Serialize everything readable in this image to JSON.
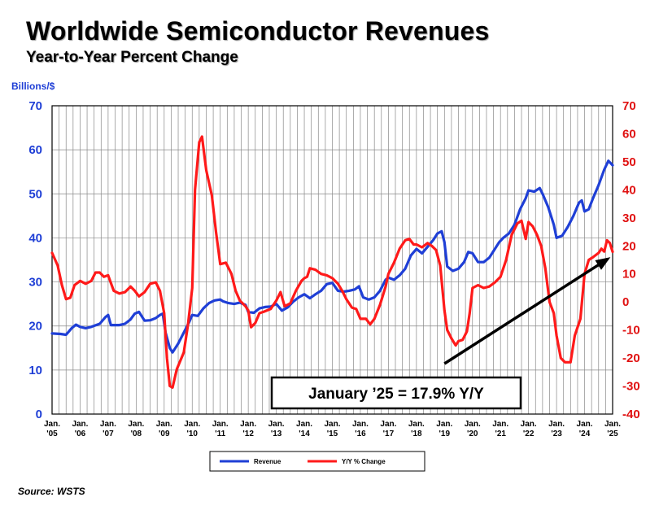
{
  "chart_data": {
    "type": "line",
    "title": "Worldwide Semiconductor Revenues",
    "subtitle": "Year-to-Year Percent Change",
    "left_axis": {
      "label": "Billions/$",
      "ylim": [
        0,
        70
      ],
      "ticks": [
        "0",
        "10",
        "20",
        "30",
        "40",
        "50",
        "60",
        "70"
      ],
      "color": "#1f3fd6"
    },
    "right_axis": {
      "label": "",
      "ylim": [
        -40,
        70
      ],
      "ticks": [
        "-40",
        "-30",
        "-20",
        "-10",
        "0",
        "10",
        "20",
        "30",
        "40",
        "50",
        "60",
        "70"
      ],
      "color": "#e01010"
    },
    "x_ticks": [
      {
        "top": "Jan.",
        "bottom": "'05",
        "x": 2005
      },
      {
        "top": "Jan.",
        "bottom": "'06",
        "x": 2006
      },
      {
        "top": "Jan.",
        "bottom": "'07",
        "x": 2007
      },
      {
        "top": "Jan.",
        "bottom": "'08",
        "x": 2008
      },
      {
        "top": "Jan.",
        "bottom": "'09",
        "x": 2009
      },
      {
        "top": "Jan.",
        "bottom": "'10",
        "x": 2010
      },
      {
        "top": "Jan.",
        "bottom": "'11",
        "x": 2011
      },
      {
        "top": "Jan.",
        "bottom": "'12",
        "x": 2012
      },
      {
        "top": "Jan.",
        "bottom": "'13",
        "x": 2013
      },
      {
        "top": "Jan.",
        "bottom": "'14",
        "x": 2014
      },
      {
        "top": "Jan.",
        "bottom": "'15",
        "x": 2015
      },
      {
        "top": "Jan.",
        "bottom": "'16",
        "x": 2016
      },
      {
        "top": "Jan.",
        "bottom": "'17",
        "x": 2017
      },
      {
        "top": "Jan.",
        "bottom": "'18",
        "x": 2018
      },
      {
        "top": "Jan.",
        "bottom": "'19",
        "x": 2019
      },
      {
        "top": "Jan.",
        "bottom": "'20",
        "x": 2020
      },
      {
        "top": "Jan.",
        "bottom": "'21",
        "x": 2021
      },
      {
        "top": "Jan.",
        "bottom": "'22",
        "x": 2022
      },
      {
        "top": "Jan.",
        "bottom": "'23",
        "x": 2023
      },
      {
        "top": "Jan.",
        "bottom": "'24",
        "x": 2024
      },
      {
        "top": "Jan.",
        "bottom": "'25",
        "x": 2025
      }
    ],
    "xlim": [
      2005,
      2025
    ],
    "grid": true,
    "series": [
      {
        "name": "Revenue",
        "axis": "left",
        "color": "#1f3fd6",
        "points": [
          [
            2005.0,
            18.3
          ],
          [
            2005.3,
            18.2
          ],
          [
            2005.5,
            18.0
          ],
          [
            2005.7,
            19.5
          ],
          [
            2005.85,
            20.3
          ],
          [
            2006.0,
            19.8
          ],
          [
            2006.2,
            19.5
          ],
          [
            2006.4,
            19.8
          ],
          [
            2006.7,
            20.5
          ],
          [
            2006.9,
            22.0
          ],
          [
            2007.0,
            22.5
          ],
          [
            2007.1,
            20.2
          ],
          [
            2007.4,
            20.2
          ],
          [
            2007.6,
            20.5
          ],
          [
            2007.8,
            21.5
          ],
          [
            2007.95,
            22.8
          ],
          [
            2008.1,
            23.2
          ],
          [
            2008.3,
            21.2
          ],
          [
            2008.5,
            21.3
          ],
          [
            2008.7,
            21.8
          ],
          [
            2008.85,
            22.5
          ],
          [
            2008.95,
            22.8
          ],
          [
            2009.05,
            18.5
          ],
          [
            2009.2,
            15.0
          ],
          [
            2009.3,
            14.0
          ],
          [
            2009.5,
            16.0
          ],
          [
            2009.7,
            18.5
          ],
          [
            2009.9,
            21.0
          ],
          [
            2010.0,
            22.5
          ],
          [
            2010.2,
            22.3
          ],
          [
            2010.4,
            24.0
          ],
          [
            2010.6,
            25.2
          ],
          [
            2010.8,
            25.8
          ],
          [
            2011.0,
            26.0
          ],
          [
            2011.1,
            25.6
          ],
          [
            2011.3,
            25.2
          ],
          [
            2011.5,
            25.0
          ],
          [
            2011.7,
            25.3
          ],
          [
            2011.9,
            24.8
          ],
          [
            2012.0,
            23.2
          ],
          [
            2012.2,
            23.0
          ],
          [
            2012.4,
            24.0
          ],
          [
            2012.6,
            24.3
          ],
          [
            2012.8,
            24.4
          ],
          [
            2013.0,
            25.0
          ],
          [
            2013.2,
            23.5
          ],
          [
            2013.4,
            24.2
          ],
          [
            2013.6,
            25.5
          ],
          [
            2013.8,
            26.5
          ],
          [
            2014.0,
            27.2
          ],
          [
            2014.2,
            26.3
          ],
          [
            2014.4,
            27.2
          ],
          [
            2014.6,
            28.0
          ],
          [
            2014.8,
            29.5
          ],
          [
            2015.0,
            29.8
          ],
          [
            2015.2,
            28.0
          ],
          [
            2015.4,
            27.8
          ],
          [
            2015.6,
            28.0
          ],
          [
            2015.8,
            28.3
          ],
          [
            2015.95,
            29.0
          ],
          [
            2016.1,
            26.5
          ],
          [
            2016.3,
            26.0
          ],
          [
            2016.5,
            26.5
          ],
          [
            2016.7,
            28.0
          ],
          [
            2016.9,
            30.5
          ],
          [
            2017.0,
            31.0
          ],
          [
            2017.2,
            30.5
          ],
          [
            2017.4,
            31.5
          ],
          [
            2017.6,
            33.0
          ],
          [
            2017.8,
            36.0
          ],
          [
            2018.0,
            37.5
          ],
          [
            2018.2,
            36.5
          ],
          [
            2018.4,
            38.0
          ],
          [
            2018.6,
            39.5
          ],
          [
            2018.75,
            41.0
          ],
          [
            2018.9,
            41.5
          ],
          [
            2019.0,
            39.0
          ],
          [
            2019.1,
            33.5
          ],
          [
            2019.3,
            32.5
          ],
          [
            2019.5,
            33.0
          ],
          [
            2019.7,
            34.5
          ],
          [
            2019.85,
            36.8
          ],
          [
            2020.0,
            36.5
          ],
          [
            2020.2,
            34.5
          ],
          [
            2020.4,
            34.5
          ],
          [
            2020.6,
            35.5
          ],
          [
            2020.8,
            37.5
          ],
          [
            2020.95,
            39.0
          ],
          [
            2021.1,
            40.0
          ],
          [
            2021.3,
            41.0
          ],
          [
            2021.5,
            43.0
          ],
          [
            2021.7,
            46.5
          ],
          [
            2021.9,
            49.0
          ],
          [
            2022.0,
            50.8
          ],
          [
            2022.2,
            50.5
          ],
          [
            2022.4,
            51.3
          ],
          [
            2022.5,
            50.0
          ],
          [
            2022.7,
            47.0
          ],
          [
            2022.9,
            43.0
          ],
          [
            2023.0,
            40.0
          ],
          [
            2023.2,
            40.5
          ],
          [
            2023.4,
            42.5
          ],
          [
            2023.6,
            45.0
          ],
          [
            2023.8,
            48.0
          ],
          [
            2023.9,
            48.5
          ],
          [
            2024.0,
            46.0
          ],
          [
            2024.15,
            46.5
          ],
          [
            2024.3,
            49.0
          ],
          [
            2024.5,
            52.0
          ],
          [
            2024.7,
            55.5
          ],
          [
            2024.85,
            57.5
          ],
          [
            2025.0,
            56.5
          ]
        ]
      },
      {
        "name": "Y/Y % Change",
        "axis": "right",
        "color": "#ff1a1a",
        "points": [
          [
            2005.0,
            17.5
          ],
          [
            2005.2,
            13.0
          ],
          [
            2005.35,
            6.0
          ],
          [
            2005.5,
            1.0
          ],
          [
            2005.65,
            1.5
          ],
          [
            2005.8,
            6.0
          ],
          [
            2006.0,
            7.5
          ],
          [
            2006.2,
            6.5
          ],
          [
            2006.4,
            7.5
          ],
          [
            2006.55,
            10.5
          ],
          [
            2006.7,
            10.5
          ],
          [
            2006.85,
            9.0
          ],
          [
            2007.0,
            9.5
          ],
          [
            2007.2,
            4.0
          ],
          [
            2007.4,
            3.0
          ],
          [
            2007.6,
            3.5
          ],
          [
            2007.8,
            5.5
          ],
          [
            2007.95,
            4.0
          ],
          [
            2008.1,
            2.0
          ],
          [
            2008.3,
            3.5
          ],
          [
            2008.5,
            6.5
          ],
          [
            2008.7,
            7.0
          ],
          [
            2008.85,
            4.0
          ],
          [
            2009.0,
            -4.0
          ],
          [
            2009.1,
            -20.0
          ],
          [
            2009.2,
            -30.0
          ],
          [
            2009.3,
            -30.5
          ],
          [
            2009.45,
            -24.0
          ],
          [
            2009.7,
            -18.0
          ],
          [
            2009.85,
            -8.0
          ],
          [
            2010.0,
            5.0
          ],
          [
            2010.1,
            40.0
          ],
          [
            2010.25,
            57.0
          ],
          [
            2010.35,
            59.0
          ],
          [
            2010.5,
            47.0
          ],
          [
            2010.7,
            38.0
          ],
          [
            2010.85,
            25.0
          ],
          [
            2011.0,
            13.5
          ],
          [
            2011.2,
            14.0
          ],
          [
            2011.4,
            10.0
          ],
          [
            2011.55,
            4.0
          ],
          [
            2011.7,
            0.5
          ],
          [
            2011.9,
            -1.5
          ],
          [
            2012.0,
            -3.0
          ],
          [
            2012.1,
            -9.0
          ],
          [
            2012.25,
            -7.5
          ],
          [
            2012.4,
            -4.0
          ],
          [
            2012.55,
            -3.5
          ],
          [
            2012.8,
            -2.5
          ],
          [
            2013.0,
            0.5
          ],
          [
            2013.15,
            3.5
          ],
          [
            2013.3,
            -1.5
          ],
          [
            2013.5,
            -0.5
          ],
          [
            2013.7,
            4.0
          ],
          [
            2013.9,
            7.5
          ],
          [
            2014.0,
            8.5
          ],
          [
            2014.1,
            9.0
          ],
          [
            2014.2,
            12.0
          ],
          [
            2014.4,
            11.5
          ],
          [
            2014.6,
            10.0
          ],
          [
            2014.8,
            9.5
          ],
          [
            2015.0,
            8.5
          ],
          [
            2015.2,
            6.5
          ],
          [
            2015.35,
            4.0
          ],
          [
            2015.5,
            1.0
          ],
          [
            2015.7,
            -2.0
          ],
          [
            2015.85,
            -2.5
          ],
          [
            2016.0,
            -6.0
          ],
          [
            2016.2,
            -6.0
          ],
          [
            2016.35,
            -8.0
          ],
          [
            2016.5,
            -6.0
          ],
          [
            2016.7,
            -1.0
          ],
          [
            2016.9,
            5.5
          ],
          [
            2017.0,
            10.0
          ],
          [
            2017.2,
            14.0
          ],
          [
            2017.4,
            19.0
          ],
          [
            2017.6,
            22.0
          ],
          [
            2017.75,
            22.5
          ],
          [
            2017.9,
            20.5
          ],
          [
            2018.0,
            20.5
          ],
          [
            2018.2,
            19.5
          ],
          [
            2018.4,
            21.0
          ],
          [
            2018.55,
            20.0
          ],
          [
            2018.7,
            18.5
          ],
          [
            2018.85,
            13.0
          ],
          [
            2019.0,
            -3.0
          ],
          [
            2019.1,
            -10.0
          ],
          [
            2019.25,
            -13.0
          ],
          [
            2019.4,
            -15.5
          ],
          [
            2019.5,
            -14.0
          ],
          [
            2019.65,
            -13.5
          ],
          [
            2019.8,
            -10.5
          ],
          [
            2019.9,
            -4.0
          ],
          [
            2020.0,
            5.0
          ],
          [
            2020.2,
            6.0
          ],
          [
            2020.4,
            5.0
          ],
          [
            2020.6,
            5.5
          ],
          [
            2020.8,
            7.0
          ],
          [
            2021.0,
            9.0
          ],
          [
            2021.2,
            15.0
          ],
          [
            2021.4,
            24.0
          ],
          [
            2021.6,
            28.0
          ],
          [
            2021.75,
            29.0
          ],
          [
            2021.9,
            22.5
          ],
          [
            2022.0,
            28.5
          ],
          [
            2022.15,
            27.0
          ],
          [
            2022.3,
            24.0
          ],
          [
            2022.45,
            20.0
          ],
          [
            2022.6,
            12.0
          ],
          [
            2022.75,
            0.0
          ],
          [
            2022.9,
            -4.0
          ],
          [
            2023.0,
            -12.0
          ],
          [
            2023.15,
            -20.0
          ],
          [
            2023.3,
            -21.5
          ],
          [
            2023.5,
            -21.5
          ],
          [
            2023.65,
            -12.0
          ],
          [
            2023.85,
            -6.0
          ],
          [
            2024.0,
            10.0
          ],
          [
            2024.15,
            15.0
          ],
          [
            2024.3,
            16.0
          ],
          [
            2024.5,
            17.5
          ],
          [
            2024.6,
            19.0
          ],
          [
            2024.7,
            18.0
          ],
          [
            2024.8,
            22.0
          ],
          [
            2024.9,
            21.0
          ],
          [
            2025.0,
            17.9
          ]
        ]
      }
    ],
    "annotation": {
      "text": "January ’25 = 17.9% Y/Y",
      "from": [
        2019.0,
        -22.0
      ],
      "to": [
        2025.0,
        16.5
      ]
    },
    "legend": [
      {
        "name": "Revenue",
        "color": "#1f3fd6"
      },
      {
        "name": "Y/Y % Change",
        "color": "#ff1a1a"
      }
    ]
  },
  "source": "Source: WSTS"
}
